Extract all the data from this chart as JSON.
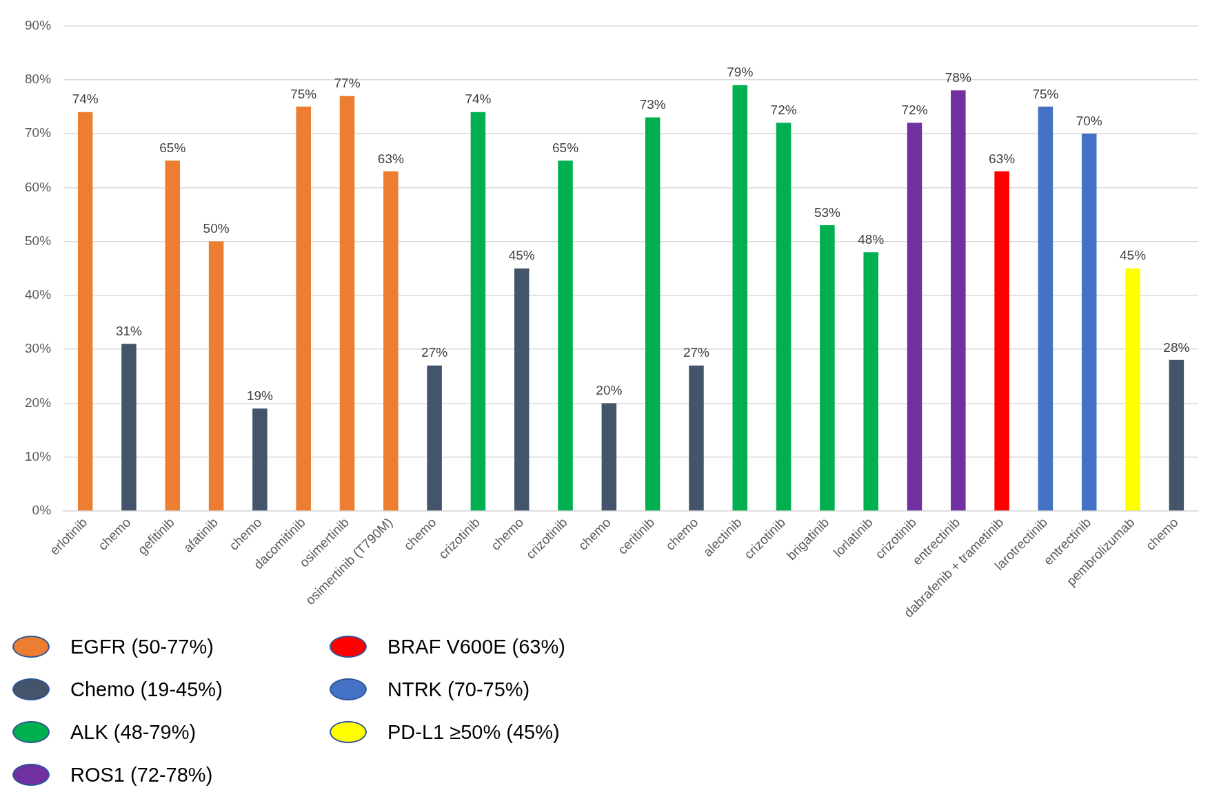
{
  "chart_data": {
    "type": "bar",
    "stacked": true,
    "categories": [
      "erlotinib",
      "chemo",
      "gefitinib",
      "afatinib",
      "chemo",
      "dacomitinib",
      "osimertinib",
      "osimertinib (T790M)",
      "chemo",
      "crizotinib",
      "chemo",
      "crizotinib",
      "chemo",
      "ceritinib",
      "chemo",
      "alectinib",
      "crizotinib",
      "brigatinib",
      "lorlatinib",
      "crizotinib",
      "entrectinib",
      "dabrafenib + trametinib",
      "larotrectinib",
      "entrectinib",
      "pembrolizumab",
      "chemo"
    ],
    "series": [
      {
        "name": "EGFR (50-77%)",
        "color": "#ed7d31",
        "values": [
          74,
          null,
          65,
          50,
          null,
          75,
          77,
          63,
          null,
          null,
          null,
          null,
          null,
          null,
          null,
          null,
          null,
          null,
          null,
          null,
          null,
          null,
          null,
          null,
          null,
          null
        ],
        "value_labels": [
          "74%",
          null,
          "65%",
          "50%",
          null,
          "75%",
          "77%",
          "63%",
          null,
          null,
          null,
          null,
          null,
          null,
          null,
          null,
          null,
          null,
          null,
          null,
          null,
          null,
          null,
          null,
          null,
          null
        ]
      },
      {
        "name": "Chemo (19-45%)",
        "color": "#44546a",
        "values": [
          null,
          31,
          null,
          null,
          19,
          null,
          null,
          null,
          27,
          null,
          45,
          null,
          20,
          null,
          27,
          null,
          null,
          null,
          null,
          null,
          null,
          null,
          null,
          null,
          null,
          28
        ],
        "value_labels": [
          null,
          "31%",
          null,
          null,
          "19%",
          null,
          null,
          null,
          "27%",
          null,
          "45%",
          null,
          "20%",
          null,
          "27%",
          null,
          null,
          null,
          null,
          null,
          null,
          null,
          null,
          null,
          null,
          "28%"
        ]
      },
      {
        "name": "ALK (48-79%)",
        "color": "#00b050",
        "values": [
          null,
          null,
          null,
          null,
          null,
          null,
          null,
          null,
          null,
          74,
          null,
          65,
          null,
          73,
          null,
          79,
          72,
          53,
          48,
          null,
          null,
          null,
          null,
          null,
          null,
          null
        ],
        "value_labels": [
          null,
          null,
          null,
          null,
          null,
          null,
          null,
          null,
          null,
          "74%",
          null,
          "65%",
          null,
          "73%",
          null,
          "79%",
          "72%",
          "53%",
          "48%",
          null,
          null,
          null,
          null,
          null,
          null,
          null
        ]
      },
      {
        "name": "ROS1 (72-78%)",
        "color": "#7030a0",
        "values": [
          null,
          null,
          null,
          null,
          null,
          null,
          null,
          null,
          null,
          null,
          null,
          null,
          null,
          null,
          null,
          null,
          null,
          null,
          null,
          72,
          78,
          null,
          null,
          null,
          null,
          null
        ],
        "value_labels": [
          null,
          null,
          null,
          null,
          null,
          null,
          null,
          null,
          null,
          null,
          null,
          null,
          null,
          null,
          null,
          null,
          null,
          null,
          null,
          "72%",
          "78%",
          null,
          null,
          null,
          null,
          null
        ]
      },
      {
        "name": "BRAF V600E (63%)",
        "color": "#ff0000",
        "values": [
          null,
          null,
          null,
          null,
          null,
          null,
          null,
          null,
          null,
          null,
          null,
          null,
          null,
          null,
          null,
          null,
          null,
          null,
          null,
          null,
          null,
          63,
          null,
          null,
          null,
          null
        ],
        "value_labels": [
          null,
          null,
          null,
          null,
          null,
          null,
          null,
          null,
          null,
          null,
          null,
          null,
          null,
          null,
          null,
          null,
          null,
          null,
          null,
          null,
          null,
          "63%",
          null,
          null,
          null,
          null
        ]
      },
      {
        "name": "NTRK (70-75%)",
        "color": "#4472c4",
        "values": [
          null,
          null,
          null,
          null,
          null,
          null,
          null,
          null,
          null,
          null,
          null,
          null,
          null,
          null,
          null,
          null,
          null,
          null,
          null,
          null,
          null,
          null,
          75,
          70,
          null,
          null
        ],
        "value_labels": [
          null,
          null,
          null,
          null,
          null,
          null,
          null,
          null,
          null,
          null,
          null,
          null,
          null,
          null,
          null,
          null,
          null,
          null,
          null,
          null,
          null,
          null,
          "75%",
          "70%",
          null,
          null
        ]
      },
      {
        "name": "PD-L1 ≥50% (45%)",
        "color": "#ffff00",
        "values": [
          null,
          null,
          null,
          null,
          null,
          null,
          null,
          null,
          null,
          null,
          null,
          null,
          null,
          null,
          null,
          null,
          null,
          null,
          null,
          null,
          null,
          null,
          null,
          null,
          45,
          null
        ],
        "value_labels": [
          null,
          null,
          null,
          null,
          null,
          null,
          null,
          null,
          null,
          null,
          null,
          null,
          null,
          null,
          null,
          null,
          null,
          null,
          null,
          null,
          null,
          null,
          null,
          null,
          "45%",
          null
        ]
      }
    ],
    "ylim": [
      0,
      90
    ],
    "yticks": [
      {
        "value": 0,
        "label": "0%"
      },
      {
        "value": 10,
        "label": "10%"
      },
      {
        "value": 20,
        "label": "20%"
      },
      {
        "value": 30,
        "label": "30%"
      },
      {
        "value": 40,
        "label": "40%"
      },
      {
        "value": 50,
        "label": "50%"
      },
      {
        "value": 60,
        "label": "60%"
      },
      {
        "value": 70,
        "label": "70%"
      },
      {
        "value": 80,
        "label": "80%"
      },
      {
        "value": 90,
        "label": "90%"
      }
    ],
    "grid": "y",
    "legend": "bottom left"
  }
}
